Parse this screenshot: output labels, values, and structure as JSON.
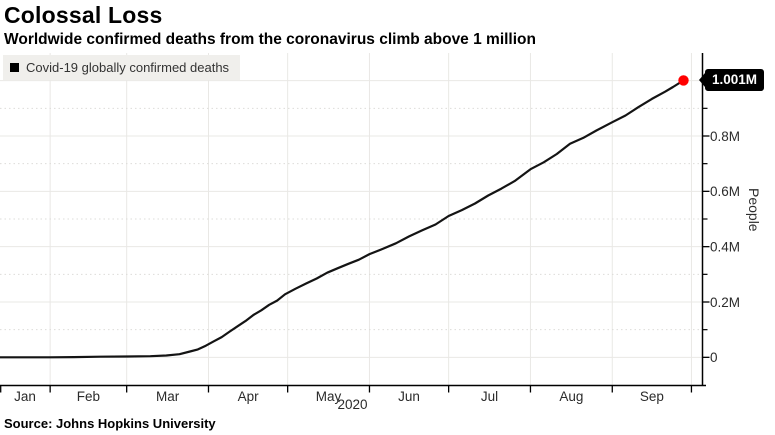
{
  "chart_data": {
    "type": "line",
    "title": "Colossal Loss",
    "subtitle": "Worldwide confirmed deaths from the coronavirus climb above 1 million",
    "source": "Source: Johns Hopkins University",
    "xlabel": "2020",
    "ylabel": "People",
    "legend_position": "top-left",
    "legend_entries": [
      {
        "label": "Covid-19 globally confirmed deaths",
        "marker_color": "#000000"
      }
    ],
    "x_domain": [
      "2020-01-13",
      "2020-10-05"
    ],
    "months": [
      {
        "label": "Jan",
        "start": "2020-01-13",
        "end": "2020-02-01"
      },
      {
        "label": "Feb",
        "start": "2020-02-01",
        "end": "2020-03-01"
      },
      {
        "label": "Mar",
        "start": "2020-03-01",
        "end": "2020-04-01"
      },
      {
        "label": "Apr",
        "start": "2020-04-01",
        "end": "2020-05-01"
      },
      {
        "label": "May",
        "start": "2020-05-01",
        "end": "2020-06-01"
      },
      {
        "label": "Jun",
        "start": "2020-06-01",
        "end": "2020-07-01"
      },
      {
        "label": "Jul",
        "start": "2020-07-01",
        "end": "2020-08-01"
      },
      {
        "label": "Aug",
        "start": "2020-08-01",
        "end": "2020-09-01"
      },
      {
        "label": "Sep",
        "start": "2020-09-01",
        "end": "2020-10-01"
      }
    ],
    "ylim": [
      -0.1,
      1.1
    ],
    "y_unit": "millions of people",
    "y_ticks_major": [
      {
        "value": 0,
        "label": "0"
      },
      {
        "value": 0.2,
        "label": "0.2M"
      },
      {
        "value": 0.4,
        "label": "0.4M"
      },
      {
        "value": 0.6,
        "label": "0.6M"
      },
      {
        "value": 0.8,
        "label": "0.8M"
      },
      {
        "value": 1.0,
        "label": ""
      }
    ],
    "y_ticks_minor": [
      0.1,
      0.3,
      0.5,
      0.7,
      0.9
    ],
    "grid": {
      "major_color": "#e9e8e5",
      "minor_color": "#dddcd9",
      "minor_style": "dotted"
    },
    "axis_color": "#000000",
    "tick_label_color": "#2b2b2b",
    "series": [
      {
        "name": "Covid-19 globally confirmed deaths",
        "color": "#141414",
        "points": [
          [
            "2020-01-13",
            0.0
          ],
          [
            "2020-01-22",
            0.0
          ],
          [
            "2020-02-01",
            0.0003
          ],
          [
            "2020-02-10",
            0.001
          ],
          [
            "2020-02-20",
            0.0022
          ],
          [
            "2020-03-01",
            0.003
          ],
          [
            "2020-03-10",
            0.004
          ],
          [
            "2020-03-16",
            0.0067
          ],
          [
            "2020-03-21",
            0.0115
          ],
          [
            "2020-03-25",
            0.021
          ],
          [
            "2020-03-28",
            0.0285
          ],
          [
            "2020-03-31",
            0.042
          ],
          [
            "2020-04-03",
            0.058
          ],
          [
            "2020-04-06",
            0.073
          ],
          [
            "2020-04-09",
            0.093
          ],
          [
            "2020-04-12",
            0.112
          ],
          [
            "2020-04-15",
            0.131
          ],
          [
            "2020-04-18",
            0.153
          ],
          [
            "2020-04-21",
            0.17
          ],
          [
            "2020-04-24",
            0.19
          ],
          [
            "2020-04-27",
            0.205
          ],
          [
            "2020-04-30",
            0.228
          ],
          [
            "2020-05-04",
            0.248
          ],
          [
            "2020-05-08",
            0.267
          ],
          [
            "2020-05-12",
            0.285
          ],
          [
            "2020-05-16",
            0.306
          ],
          [
            "2020-05-20",
            0.322
          ],
          [
            "2020-05-24",
            0.338
          ],
          [
            "2020-05-28",
            0.353
          ],
          [
            "2020-06-01",
            0.373
          ],
          [
            "2020-06-06",
            0.392
          ],
          [
            "2020-06-11",
            0.412
          ],
          [
            "2020-06-16",
            0.437
          ],
          [
            "2020-06-21",
            0.459
          ],
          [
            "2020-06-26",
            0.48
          ],
          [
            "2020-07-01",
            0.511
          ],
          [
            "2020-07-06",
            0.532
          ],
          [
            "2020-07-11",
            0.556
          ],
          [
            "2020-07-16",
            0.585
          ],
          [
            "2020-07-21",
            0.61
          ],
          [
            "2020-07-26",
            0.637
          ],
          [
            "2020-08-01",
            0.68
          ],
          [
            "2020-08-06",
            0.705
          ],
          [
            "2020-08-11",
            0.735
          ],
          [
            "2020-08-16",
            0.772
          ],
          [
            "2020-08-21",
            0.793
          ],
          [
            "2020-08-26",
            0.82
          ],
          [
            "2020-09-01",
            0.85
          ],
          [
            "2020-09-06",
            0.874
          ],
          [
            "2020-09-11",
            0.905
          ],
          [
            "2020-09-16",
            0.934
          ],
          [
            "2020-09-21",
            0.96
          ],
          [
            "2020-09-24",
            0.977
          ],
          [
            "2020-09-28",
            1.001
          ]
        ]
      }
    ],
    "end_annotation": {
      "date": "2020-09-28",
      "value": 1.001,
      "label": "1.001M",
      "marker_color": "#ff0000",
      "label_bg": "#000000",
      "label_text_color": "#ffffff"
    }
  }
}
